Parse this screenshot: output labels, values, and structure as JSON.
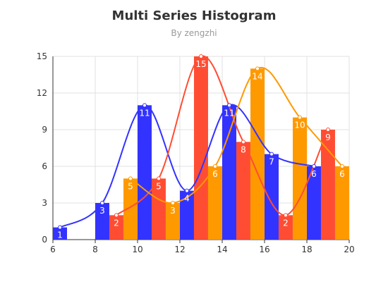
{
  "chart_data": {
    "type": "bar",
    "title": "Multi Series Histogram",
    "subtitle": "By zengzhi",
    "xlabel": "",
    "ylabel": "",
    "xlim": [
      6,
      20
    ],
    "ylim": [
      0,
      15
    ],
    "x_ticks": [
      6,
      8,
      10,
      12,
      14,
      16,
      18,
      20
    ],
    "y_ticks": [
      0,
      3,
      6,
      9,
      12,
      15
    ],
    "grid": true,
    "bin_width": 0.666,
    "series": [
      {
        "color": "#3333ff",
        "bins": [
          {
            "x0": 6.0,
            "value": 1
          },
          {
            "x0": 8.0,
            "value": 3
          },
          {
            "x0": 10.0,
            "value": 11
          },
          {
            "x0": 12.0,
            "value": 4
          },
          {
            "x0": 14.0,
            "value": 11
          },
          {
            "x0": 16.0,
            "value": 7
          },
          {
            "x0": 18.0,
            "value": 6
          }
        ]
      },
      {
        "color": "#ff4d33",
        "bins": [
          {
            "x0": 8.666,
            "value": 2
          },
          {
            "x0": 10.666,
            "value": 5
          },
          {
            "x0": 12.666,
            "value": 15
          },
          {
            "x0": 14.666,
            "value": 8
          },
          {
            "x0": 16.666,
            "value": 2
          },
          {
            "x0": 18.666,
            "value": 9
          }
        ]
      },
      {
        "color": "#ff9900",
        "bins": [
          {
            "x0": 9.333,
            "value": 5
          },
          {
            "x0": 11.333,
            "value": 3
          },
          {
            "x0": 13.333,
            "value": 6
          },
          {
            "x0": 15.333,
            "value": 14
          },
          {
            "x0": 17.333,
            "value": 10
          },
          {
            "x0": 19.333,
            "value": 6
          }
        ]
      }
    ]
  }
}
